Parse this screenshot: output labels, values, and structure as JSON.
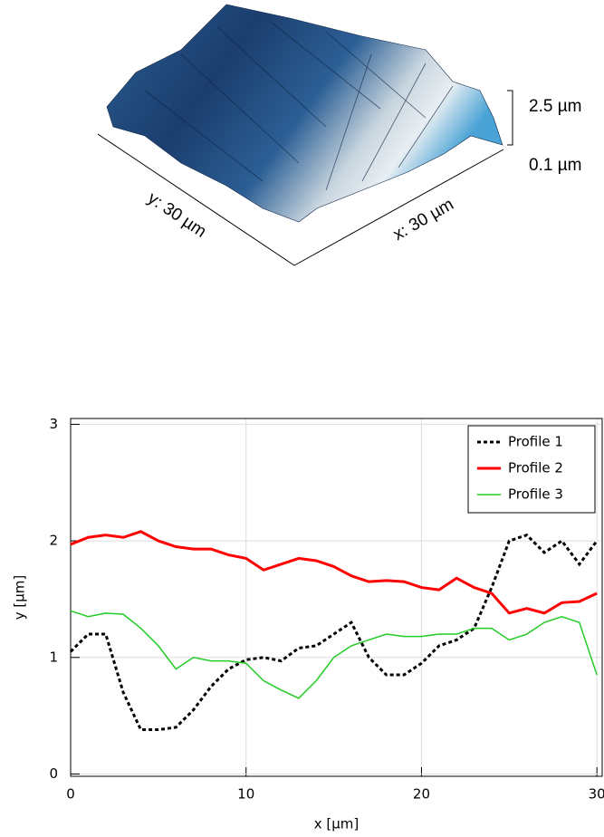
{
  "surface": {
    "z_labels": [
      "2.5 µm",
      "0.1 µm"
    ],
    "y_label": "y: 30 µm",
    "x_label": "x: 30 µm"
  },
  "chart_data": {
    "type": "line",
    "x": [
      0,
      1,
      2,
      3,
      4,
      5,
      6,
      7,
      8,
      9,
      10,
      11,
      12,
      13,
      14,
      15,
      16,
      17,
      18,
      19,
      20,
      21,
      22,
      23,
      24,
      25,
      26,
      27,
      28,
      29,
      30
    ],
    "series": [
      {
        "name": "Profile 1",
        "color": "#000000",
        "style": "dashed",
        "width": 3,
        "values": [
          1.05,
          1.2,
          1.2,
          0.7,
          0.38,
          0.38,
          0.4,
          0.55,
          0.75,
          0.9,
          0.98,
          1.0,
          0.97,
          1.08,
          1.1,
          1.2,
          1.3,
          1.0,
          0.85,
          0.85,
          0.95,
          1.1,
          1.15,
          1.25,
          1.6,
          2.0,
          2.05,
          1.9,
          2.0,
          1.8,
          2.0
        ]
      },
      {
        "name": "Profile 2",
        "color": "#ff0000",
        "style": "solid",
        "width": 3,
        "values": [
          1.97,
          2.03,
          2.05,
          2.03,
          2.08,
          2.0,
          1.95,
          1.93,
          1.93,
          1.88,
          1.85,
          1.75,
          1.8,
          1.85,
          1.83,
          1.78,
          1.7,
          1.65,
          1.66,
          1.65,
          1.6,
          1.58,
          1.68,
          1.6,
          1.55,
          1.38,
          1.42,
          1.38,
          1.47,
          1.48,
          1.55
        ]
      },
      {
        "name": "Profile 3",
        "color": "#22cc22",
        "style": "solid",
        "width": 1.5,
        "values": [
          1.4,
          1.35,
          1.38,
          1.37,
          1.25,
          1.1,
          0.9,
          1.0,
          0.97,
          0.97,
          0.95,
          0.8,
          0.72,
          0.65,
          0.8,
          1.0,
          1.1,
          1.15,
          1.2,
          1.18,
          1.18,
          1.2,
          1.2,
          1.25,
          1.25,
          1.15,
          1.2,
          1.3,
          1.35,
          1.3,
          0.85
        ]
      }
    ],
    "xlabel": "x [µm]",
    "ylabel": "y [µm]",
    "xlim": [
      0,
      30.3
    ],
    "ylim": [
      -0.02,
      3.05
    ],
    "xticks": [
      0,
      10,
      20,
      30
    ],
    "yticks": [
      0,
      1,
      2,
      3
    ],
    "grid": true,
    "legend": "upper-right"
  }
}
